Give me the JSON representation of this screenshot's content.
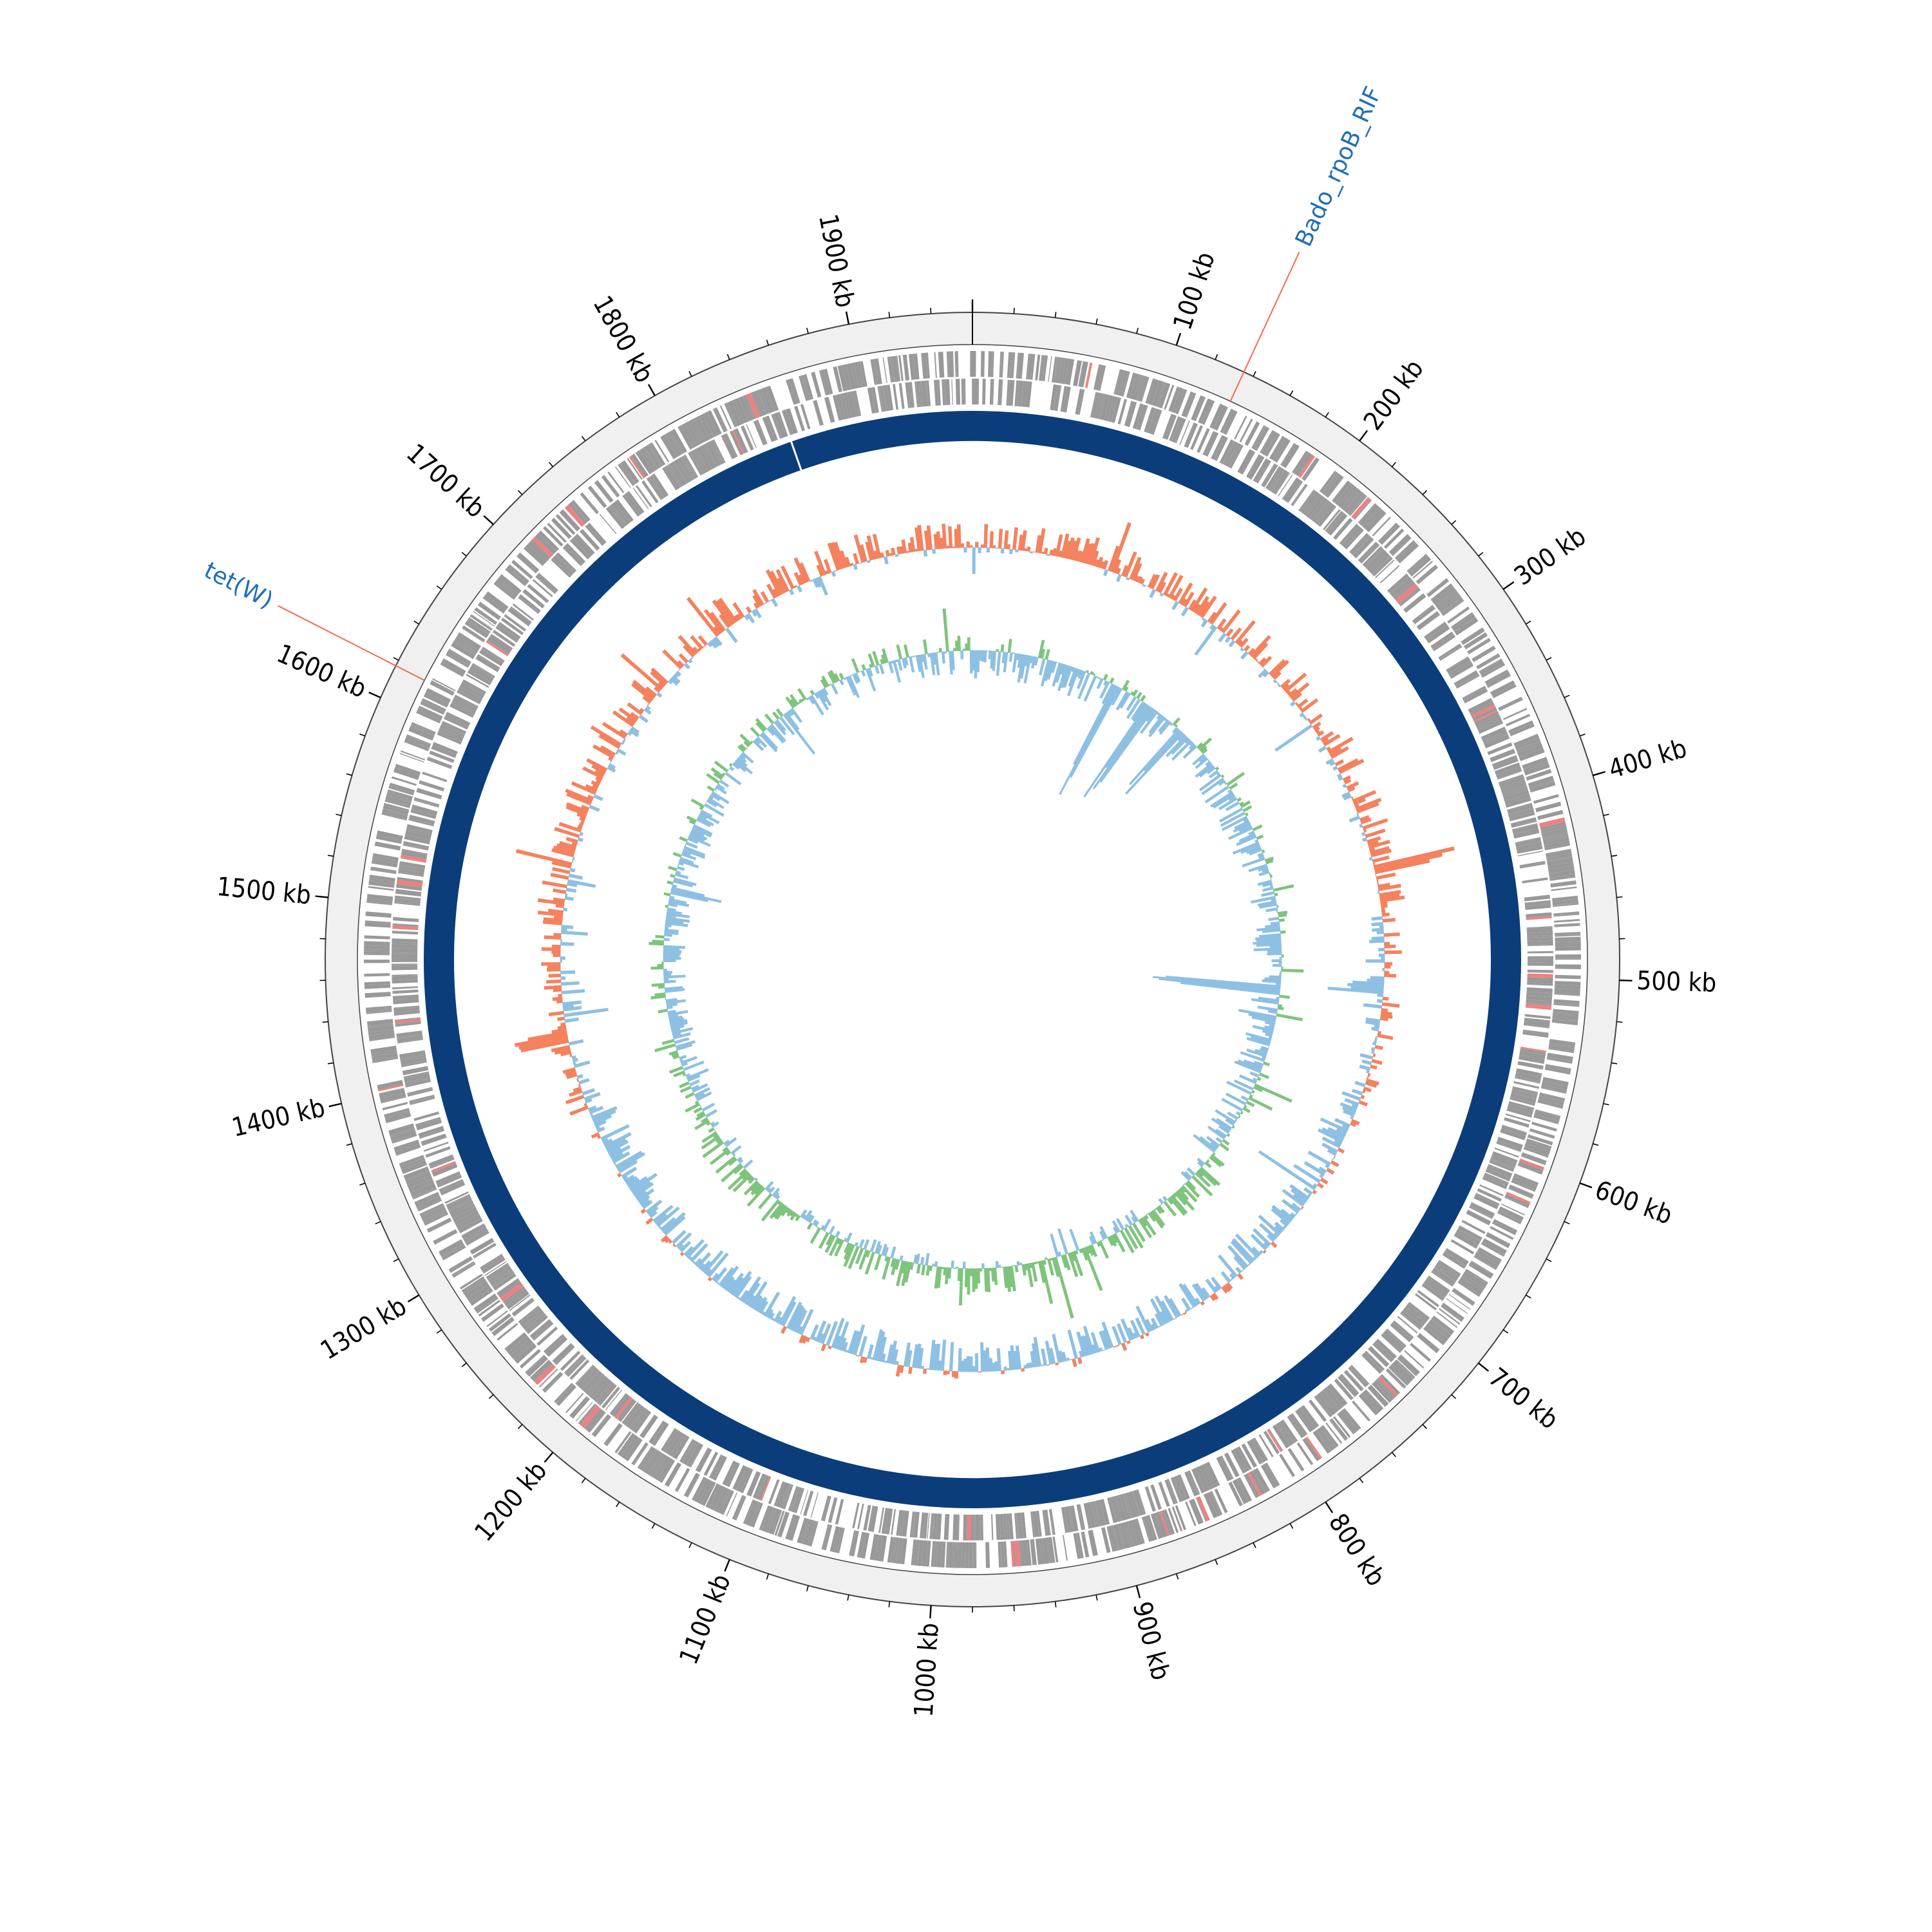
{
  "chart_data": {
    "type": "circular-genome",
    "genome_length_kb": 1960,
    "tick_labels_kb": [
      100,
      200,
      300,
      400,
      500,
      600,
      700,
      800,
      900,
      1000,
      1100,
      1200,
      1300,
      1400,
      1500,
      1600,
      1700,
      1800,
      1900
    ],
    "tick_label_template": "{v} kb",
    "annotations": [
      {
        "label": "Bado_rpoB_RIF",
        "position_kb": 135,
        "label_color": "#1f6fb4",
        "line_color": "#f26c4f"
      },
      {
        "label": "tet(W)",
        "position_kb": 1617,
        "label_color": "#1f6fb4",
        "line_color": "#f26c4f"
      }
    ],
    "tracks": {
      "backbone_color": "#f0f0f0",
      "cds_color": "#999999",
      "highlight_color": "#f08080",
      "contig_ring_color": "#0a3d7a",
      "contig_break_kb": 1855,
      "gc_content": {
        "positive_color": "#f4825f",
        "negative_color": "#8ec0e3"
      },
      "gc_skew": {
        "positive_color": "#7fc47d",
        "negative_color": "#8ec0e3"
      }
    }
  }
}
